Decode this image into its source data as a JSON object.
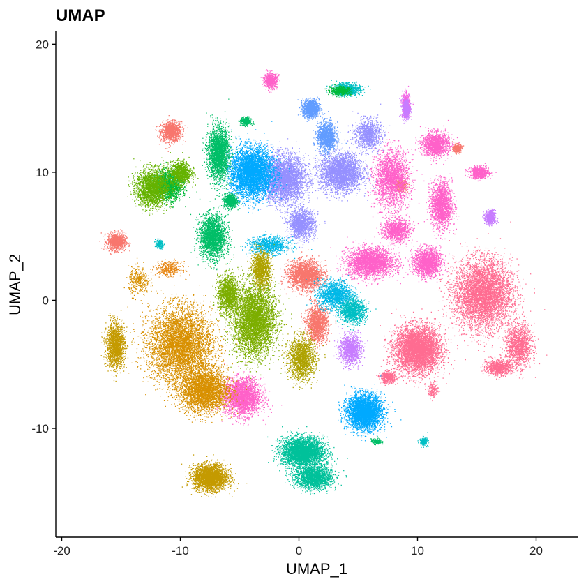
{
  "chart_data": {
    "type": "scatter",
    "title": "UMAP",
    "xlabel": "UMAP_1",
    "ylabel": "UMAP_2",
    "xlim": [
      -20.5,
      23.5
    ],
    "ylim": [
      -18.5,
      21
    ],
    "xticks": [
      -20,
      -10,
      0,
      10,
      20
    ],
    "xtick_labels": [
      "-20",
      "-10",
      "0",
      "10",
      "20"
    ],
    "yticks": [
      -10,
      0,
      10,
      20
    ],
    "ytick_labels": [
      "-10",
      "0",
      "10",
      "20"
    ],
    "grid": false,
    "legend": "none",
    "clusters": [
      {
        "color": "#F8766D",
        "center": [
          -10.8,
          13.2
        ],
        "spread": [
          0.8,
          0.7
        ],
        "density": 0.6
      },
      {
        "color": "#F8766D",
        "center": [
          -15.4,
          4.6
        ],
        "spread": [
          0.7,
          0.6
        ],
        "density": 0.5
      },
      {
        "color": "#F8766D",
        "center": [
          0.5,
          2.0
        ],
        "spread": [
          1.3,
          1.0
        ],
        "density": 1.2
      },
      {
        "color": "#F8766D",
        "center": [
          1.5,
          -1.8
        ],
        "spread": [
          0.8,
          1.2
        ],
        "density": 0.9
      },
      {
        "color": "#F8766D",
        "center": [
          13.3,
          11.9
        ],
        "spread": [
          0.3,
          0.3
        ],
        "density": 0.2
      },
      {
        "color": "#F8766D",
        "center": [
          8.5,
          9.0
        ],
        "spread": [
          0.5,
          0.4
        ],
        "density": 0.2
      },
      {
        "color": "#FF6C91",
        "center": [
          10.0,
          -3.8
        ],
        "spread": [
          1.7,
          1.6
        ],
        "density": 3.0
      },
      {
        "color": "#FF6C91",
        "center": [
          15.5,
          0.5
        ],
        "spread": [
          2.2,
          2.4
        ],
        "density": 4.0
      },
      {
        "color": "#FF6C91",
        "center": [
          18.5,
          -3.5
        ],
        "spread": [
          1.0,
          1.5
        ],
        "density": 0.8
      },
      {
        "color": "#FF6C91",
        "center": [
          16.8,
          -5.2
        ],
        "spread": [
          1.0,
          0.5
        ],
        "density": 0.5
      },
      {
        "color": "#FF6C91",
        "center": [
          7.5,
          -6.0
        ],
        "spread": [
          0.6,
          0.4
        ],
        "density": 0.3
      },
      {
        "color": "#FF6C91",
        "center": [
          11.3,
          -7.0
        ],
        "spread": [
          0.4,
          0.5
        ],
        "density": 0.1
      },
      {
        "color": "#FF61C9",
        "center": [
          10.8,
          3.0
        ],
        "spread": [
          1.0,
          1.0
        ],
        "density": 1.0
      },
      {
        "color": "#FF61C9",
        "center": [
          6.0,
          3.0
        ],
        "spread": [
          1.8,
          1.0
        ],
        "density": 1.6
      },
      {
        "color": "#FF61C9",
        "center": [
          11.5,
          12.2
        ],
        "spread": [
          1.0,
          0.8
        ],
        "density": 0.9
      },
      {
        "color": "#FF61C9",
        "center": [
          12.0,
          7.5
        ],
        "spread": [
          0.8,
          1.6
        ],
        "density": 1.1
      },
      {
        "color": "#FF61C9",
        "center": [
          7.8,
          9.5
        ],
        "spread": [
          1.3,
          2.0
        ],
        "density": 1.3
      },
      {
        "color": "#FF61C9",
        "center": [
          15.2,
          10.0
        ],
        "spread": [
          0.7,
          0.4
        ],
        "density": 0.4
      },
      {
        "color": "#FF61C9",
        "center": [
          8.2,
          5.5
        ],
        "spread": [
          1.0,
          0.8
        ],
        "density": 0.6
      },
      {
        "color": "#FF61C9",
        "center": [
          -4.8,
          -7.5
        ],
        "spread": [
          1.4,
          1.3
        ],
        "density": 1.6
      },
      {
        "color": "#FF61C9",
        "center": [
          -2.4,
          17.2
        ],
        "spread": [
          0.5,
          0.5
        ],
        "density": 0.4
      },
      {
        "color": "#F564E3",
        "center": [
          9.0,
          15.3
        ],
        "spread": [
          0.3,
          0.8
        ],
        "density": 0.3
      },
      {
        "color": "#C77CFF",
        "center": [
          4.3,
          -3.8
        ],
        "spread": [
          0.8,
          1.0
        ],
        "density": 0.7
      },
      {
        "color": "#C77CFF",
        "center": [
          16.1,
          6.5
        ],
        "spread": [
          0.4,
          0.5
        ],
        "density": 0.3
      },
      {
        "color": "#C77CFF",
        "center": [
          9.0,
          15.0
        ],
        "spread": [
          0.3,
          0.7
        ],
        "density": 0.3
      },
      {
        "color": "#9590FF",
        "center": [
          -1.3,
          9.5
        ],
        "spread": [
          1.6,
          1.6
        ],
        "density": 2.2
      },
      {
        "color": "#9590FF",
        "center": [
          3.5,
          10.0
        ],
        "spread": [
          1.6,
          1.3
        ],
        "density": 1.8
      },
      {
        "color": "#9590FF",
        "center": [
          0.2,
          6.0
        ],
        "spread": [
          1.0,
          1.0
        ],
        "density": 0.8
      },
      {
        "color": "#9590FF",
        "center": [
          5.8,
          13.0
        ],
        "spread": [
          1.0,
          1.0
        ],
        "density": 0.6
      },
      {
        "color": "#619CFF",
        "center": [
          1.0,
          15.0
        ],
        "spread": [
          0.6,
          0.6
        ],
        "density": 0.7
      },
      {
        "color": "#619CFF",
        "center": [
          2.3,
          12.8
        ],
        "spread": [
          0.7,
          1.0
        ],
        "density": 0.8
      },
      {
        "color": "#00A9FF",
        "center": [
          -4.0,
          10.0
        ],
        "spread": [
          1.6,
          1.7
        ],
        "density": 2.8
      },
      {
        "color": "#00A9FF",
        "center": [
          5.5,
          -8.7
        ],
        "spread": [
          1.3,
          1.2
        ],
        "density": 2.2
      },
      {
        "color": "#00B8E7",
        "center": [
          3.0,
          0.5
        ],
        "spread": [
          1.3,
          1.0
        ],
        "density": 0.8
      },
      {
        "color": "#00B8E7",
        "center": [
          -2.5,
          4.3
        ],
        "spread": [
          1.5,
          0.6
        ],
        "density": 0.5
      },
      {
        "color": "#00BFC4",
        "center": [
          4.5,
          -0.8
        ],
        "spread": [
          1.0,
          0.8
        ],
        "density": 0.7
      },
      {
        "color": "#00BFC4",
        "center": [
          4.0,
          16.5
        ],
        "spread": [
          1.0,
          0.4
        ],
        "density": 0.6
      },
      {
        "color": "#00BFC4",
        "center": [
          10.5,
          -11.0
        ],
        "spread": [
          0.3,
          0.3
        ],
        "density": 0.1
      },
      {
        "color": "#00BFC4",
        "center": [
          -11.8,
          4.4
        ],
        "spread": [
          0.3,
          0.3
        ],
        "density": 0.1
      },
      {
        "color": "#00C19A",
        "center": [
          0.3,
          -11.8
        ],
        "spread": [
          1.6,
          1.0
        ],
        "density": 2.2
      },
      {
        "color": "#00C19A",
        "center": [
          1.2,
          -13.8
        ],
        "spread": [
          1.4,
          0.8
        ],
        "density": 1.2
      },
      {
        "color": "#00BE67",
        "center": [
          -7.3,
          5.0
        ],
        "spread": [
          1.0,
          1.5
        ],
        "density": 1.4
      },
      {
        "color": "#00BE67",
        "center": [
          -6.8,
          11.5
        ],
        "spread": [
          0.8,
          1.8
        ],
        "density": 1.5
      },
      {
        "color": "#00BE67",
        "center": [
          -4.5,
          14.0
        ],
        "spread": [
          0.4,
          0.3
        ],
        "density": 0.2
      },
      {
        "color": "#00BE67",
        "center": [
          -5.8,
          7.8
        ],
        "spread": [
          0.5,
          0.5
        ],
        "density": 0.4
      },
      {
        "color": "#00BE67",
        "center": [
          6.5,
          -11.0
        ],
        "spread": [
          0.4,
          0.2
        ],
        "density": 0.1
      },
      {
        "color": "#00BA38",
        "center": [
          -11.0,
          9.0
        ],
        "spread": [
          1.0,
          1.0
        ],
        "density": 1.0
      },
      {
        "color": "#00BA38",
        "center": [
          3.5,
          16.4
        ],
        "spread": [
          0.8,
          0.3
        ],
        "density": 0.3
      },
      {
        "color": "#64B200",
        "center": [
          -12.4,
          8.8
        ],
        "spread": [
          1.2,
          1.3
        ],
        "density": 1.3
      },
      {
        "color": "#64B200",
        "center": [
          -10.0,
          10.0
        ],
        "spread": [
          0.8,
          0.8
        ],
        "density": 0.6
      },
      {
        "color": "#7CAE00",
        "center": [
          -3.8,
          -1.5
        ],
        "spread": [
          1.6,
          2.5
        ],
        "density": 2.8
      },
      {
        "color": "#7CAE00",
        "center": [
          -6.0,
          0.5
        ],
        "spread": [
          0.8,
          1.3
        ],
        "density": 0.8
      },
      {
        "color": "#AEA200",
        "center": [
          -3.2,
          2.5
        ],
        "spread": [
          0.7,
          1.2
        ],
        "density": 0.7
      },
      {
        "color": "#AEA200",
        "center": [
          0.2,
          -4.5
        ],
        "spread": [
          1.0,
          1.5
        ],
        "density": 1.0
      },
      {
        "color": "#C49A00",
        "center": [
          -7.5,
          -13.8
        ],
        "spread": [
          1.3,
          0.9
        ],
        "density": 1.6
      },
      {
        "color": "#C49A00",
        "center": [
          -15.5,
          -3.5
        ],
        "spread": [
          0.7,
          1.5
        ],
        "density": 1.0
      },
      {
        "color": "#D89000",
        "center": [
          -10.0,
          -3.5
        ],
        "spread": [
          2.4,
          2.6
        ],
        "density": 5.5
      },
      {
        "color": "#D89000",
        "center": [
          -8.0,
          -7.0
        ],
        "spread": [
          1.8,
          1.5
        ],
        "density": 2.0
      },
      {
        "color": "#D89000",
        "center": [
          -13.5,
          1.5
        ],
        "spread": [
          0.8,
          1.0
        ],
        "density": 0.2
      },
      {
        "color": "#E68613",
        "center": [
          -11.0,
          2.5
        ],
        "spread": [
          1.0,
          0.5
        ],
        "density": 0.2
      }
    ]
  }
}
